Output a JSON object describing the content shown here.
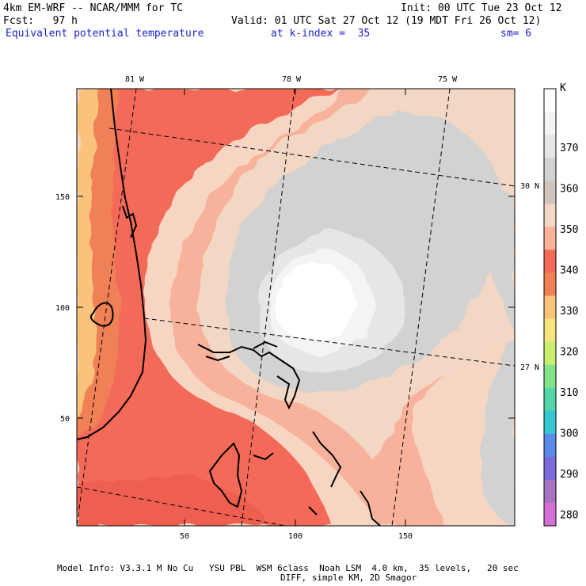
{
  "header": {
    "model": "4km EM-WRF -- NCAR/MMM for TC",
    "init": "Init: 00 UTC Tue 23 Oct 12",
    "fcst": "Fcst:   97 h",
    "valid": "Valid: 01 UTC Sat 27 Oct 12 (19 MDT Fri 26 Oct 12)",
    "field": "Equivalent potential temperature",
    "level": "at k-index =  35",
    "smoothing": "sm= 6"
  },
  "map": {
    "lon_labels": [
      "81 W",
      "78 W",
      "75 W"
    ],
    "lat_labels": [
      "30 N",
      "27 N"
    ],
    "x_ticks": [
      "50",
      "100",
      "150"
    ],
    "y_ticks": [
      "150",
      "100",
      "50"
    ]
  },
  "colorbar": {
    "unit": "K",
    "labels": [
      "370",
      "360",
      "350",
      "340",
      "330",
      "320",
      "310",
      "300",
      "290",
      "280"
    ],
    "colors": [
      "#ffffff",
      "#f4f4f4",
      "#e6e6e6",
      "#d2d2d2",
      "#cfc5bc",
      "#f2d7c4",
      "#f8b19a",
      "#f36b58",
      "#f08055",
      "#f9c37b",
      "#f6e47e",
      "#c9ee6e",
      "#82e38a",
      "#54d6aa",
      "#36c7d0",
      "#5a8ae8",
      "#7b6ad8",
      "#a973c4",
      "#d36fd6"
    ]
  },
  "footer": {
    "line1": "Model Info: V3.3.1 M No Cu   YSU PBL  WSM 6class  Noah LSM  4.0 km,  35 levels,   20 sec",
    "line2": "DIFF, simple KM, 2D Smagor"
  }
}
